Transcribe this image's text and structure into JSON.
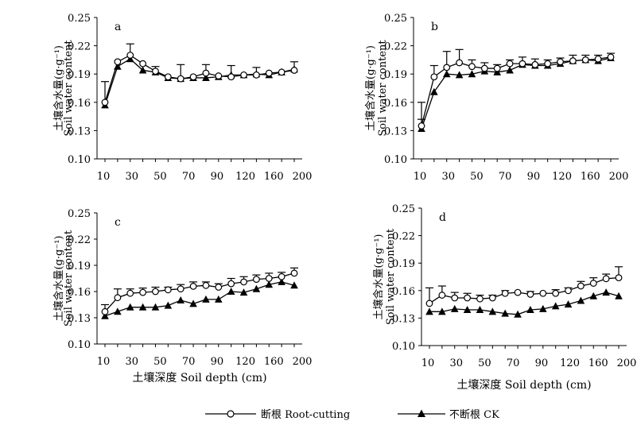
{
  "figure": {
    "legend": [
      {
        "label": "断根 Root-cutting",
        "marker": "open-circle"
      },
      {
        "label": "不断根 CK",
        "marker": "filled-triangle"
      }
    ],
    "colors": {
      "line": "#000000",
      "background": "#ffffff"
    }
  },
  "chart_data": [
    {
      "type": "line",
      "panel_label": "a",
      "ylabel_cn": "土壤含水量(g·g⁻¹)",
      "ylabel_en": "Soil water content",
      "xlabel": "",
      "ylim": [
        0.1,
        0.25
      ],
      "yticks": [
        "0.10",
        "0.13",
        "0.16",
        "0.19",
        "0.22",
        "0.25"
      ],
      "xticks": [
        "10",
        "30",
        "50",
        "70",
        "90",
        "120",
        "160",
        "200"
      ],
      "x": [
        10,
        20,
        30,
        40,
        50,
        60,
        70,
        80,
        90,
        100,
        110,
        120,
        130,
        140,
        150,
        160
      ],
      "series": [
        {
          "name": "断根 Root-cutting",
          "values": [
            0.16,
            0.203,
            0.21,
            0.201,
            0.193,
            0.187,
            0.185,
            0.187,
            0.191,
            0.188,
            0.187,
            0.189,
            0.189,
            0.191,
            0.192,
            0.194
          ],
          "errors": [
            0.0,
            0.0,
            0.012,
            0.0,
            0.0,
            0.0,
            0.015,
            0.0,
            0.009,
            0.0,
            0.012,
            0.0,
            0.008,
            0.0,
            0.0,
            0.009
          ]
        },
        {
          "name": "不断根 CK",
          "values": [
            0.157,
            0.198,
            0.206,
            0.194,
            0.192,
            0.186,
            0.185,
            0.186,
            0.186,
            0.187,
            0.189,
            0.189,
            0.19,
            0.189,
            0.192,
            0.195
          ],
          "errors": [
            0.025,
            0.0,
            0.0,
            0.0,
            0.006,
            0.0,
            0.0,
            0.0,
            0.0,
            0.0,
            0.0,
            0.0,
            0.0,
            0.0,
            0.0,
            0.0
          ]
        }
      ]
    },
    {
      "type": "line",
      "panel_label": "b",
      "ylabel_cn": "土壤含水量(g·g⁻¹)",
      "ylabel_en": "Soil water content",
      "xlabel": "",
      "ylim": [
        0.1,
        0.25
      ],
      "yticks": [
        "0.10",
        "0.13",
        "0.16",
        "0.19",
        "0.22",
        "0.25"
      ],
      "xticks": [
        "10",
        "30",
        "50",
        "70",
        "90",
        "120",
        "160",
        "200"
      ],
      "x": [
        10,
        20,
        30,
        40,
        50,
        60,
        70,
        80,
        90,
        100,
        110,
        120,
        130,
        140,
        150,
        160
      ],
      "series": [
        {
          "name": "断根 Root-cutting",
          "values": [
            0.135,
            0.187,
            0.197,
            0.202,
            0.198,
            0.196,
            0.196,
            0.201,
            0.201,
            0.2,
            0.201,
            0.203,
            0.204,
            0.205,
            0.206,
            0.208
          ],
          "errors": [
            0.025,
            0.012,
            0.017,
            0.014,
            0.007,
            0.006,
            0.004,
            0.004,
            0.007,
            0.006,
            0.004,
            0.004,
            0.006,
            0.005,
            0.004,
            0.004
          ]
        },
        {
          "name": "不断根 CK",
          "values": [
            0.132,
            0.171,
            0.19,
            0.189,
            0.19,
            0.193,
            0.192,
            0.194,
            0.2,
            0.199,
            0.199,
            0.201,
            0.204,
            0.205,
            0.204,
            0.207
          ],
          "errors": [
            0.01,
            0.0,
            0.0,
            0.0,
            0.0,
            0.0,
            0.0,
            0.0,
            0.0,
            0.0,
            0.0,
            0.0,
            0.0,
            0.0,
            0.0,
            0.0
          ]
        }
      ]
    },
    {
      "type": "line",
      "panel_label": "c",
      "ylabel_cn": "土壤含水量(g·g⁻¹)",
      "ylabel_en": "Soil water content",
      "xlabel": "土壤深度 Soil depth (cm)",
      "ylim": [
        0.1,
        0.25
      ],
      "yticks": [
        "0.10",
        "0.13",
        "0.16",
        "0.19",
        "0.22",
        "0.25"
      ],
      "xticks": [
        "10",
        "30",
        "50",
        "70",
        "90",
        "120",
        "160",
        "200"
      ],
      "x": [
        10,
        20,
        30,
        40,
        50,
        60,
        70,
        80,
        90,
        100,
        110,
        120,
        130,
        140,
        150,
        160
      ],
      "series": [
        {
          "name": "断根 Root-cutting",
          "values": [
            0.137,
            0.153,
            0.158,
            0.159,
            0.16,
            0.162,
            0.163,
            0.166,
            0.167,
            0.165,
            0.169,
            0.171,
            0.174,
            0.175,
            0.177,
            0.181
          ],
          "errors": [
            0.008,
            0.01,
            0.005,
            0.005,
            0.005,
            0.003,
            0.005,
            0.005,
            0.004,
            0.004,
            0.006,
            0.006,
            0.005,
            0.006,
            0.005,
            0.006
          ]
        },
        {
          "name": "不断根 CK",
          "values": [
            0.132,
            0.137,
            0.142,
            0.142,
            0.142,
            0.144,
            0.15,
            0.146,
            0.151,
            0.151,
            0.16,
            0.159,
            0.163,
            0.168,
            0.171,
            0.167
          ],
          "errors": [
            0.0,
            0.0,
            0.0,
            0.0,
            0.0,
            0.0,
            0.0,
            0.0,
            0.0,
            0.0,
            0.0,
            0.0,
            0.0,
            0.0,
            0.0,
            0.0
          ]
        }
      ]
    },
    {
      "type": "line",
      "panel_label": "d",
      "ylabel_cn": "土壤含水量(g·g⁻¹)",
      "ylabel_en": "Soil water content",
      "xlabel": "土壤深度 Soil depth (cm)",
      "ylim": [
        0.1,
        0.25
      ],
      "yticks": [
        "0.10",
        "0.13",
        "0.16",
        "0.19",
        "0.22",
        "0.25"
      ],
      "xticks": [
        "10",
        "30",
        "50",
        "70",
        "90",
        "120",
        "160",
        "200"
      ],
      "x": [
        10,
        20,
        30,
        40,
        50,
        60,
        70,
        80,
        90,
        100,
        110,
        120,
        130,
        140,
        150,
        160
      ],
      "series": [
        {
          "name": "断根 Root-cutting",
          "values": [
            0.146,
            0.155,
            0.152,
            0.152,
            0.151,
            0.152,
            0.157,
            0.158,
            0.156,
            0.157,
            0.157,
            0.16,
            0.165,
            0.168,
            0.173,
            0.174
          ],
          "errors": [
            0.017,
            0.01,
            0.006,
            0.005,
            0.004,
            0.003,
            0.003,
            0.0,
            0.003,
            0.0,
            0.004,
            0.003,
            0.005,
            0.006,
            0.005,
            0.012
          ]
        },
        {
          "name": "不断根 CK",
          "values": [
            0.137,
            0.137,
            0.14,
            0.139,
            0.139,
            0.137,
            0.135,
            0.134,
            0.139,
            0.14,
            0.143,
            0.145,
            0.149,
            0.154,
            0.158,
            0.154
          ],
          "errors": [
            0.0,
            0.0,
            0.0,
            0.0,
            0.0,
            0.0,
            0.0,
            0.0,
            0.0,
            0.0,
            0.0,
            0.0,
            0.0,
            0.0,
            0.0,
            0.0
          ]
        }
      ]
    }
  ]
}
